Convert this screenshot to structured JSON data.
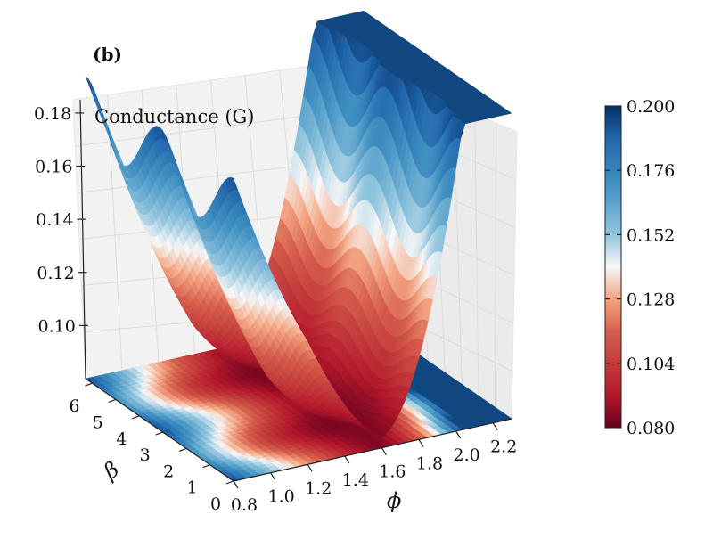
{
  "chart_data": {
    "type": "surface3d",
    "panel_label": "(b)",
    "title": "Conductance (G)",
    "xlabel": "ϕ",
    "ylabel": "β",
    "x_ticks": [
      "0.8",
      "1.0",
      "1.2",
      "1.4",
      "1.6",
      "1.8",
      "2.0",
      "2.2"
    ],
    "y_ticks": [
      "0",
      "1",
      "2",
      "3",
      "4",
      "5",
      "6"
    ],
    "z_ticks": [
      "0.10",
      "0.12",
      "0.14",
      "0.16",
      "0.18"
    ],
    "xlim": [
      0.8,
      2.3
    ],
    "ylim": [
      0,
      6.28
    ],
    "zlim": [
      0.08,
      0.185
    ],
    "colormap": "RdBu",
    "colorbar": {
      "min": 0.08,
      "max": 0.2,
      "ticks": [
        "0.080",
        "0.104",
        "0.128",
        "0.152",
        "0.176",
        "0.200"
      ]
    },
    "surface": "G(ϕ, β) minimum ≈0.085 at ϕ≈1.6, rising to ≈0.18 at ϕ≈0.8 and ≈0.19 at ϕ≈2.0; wavy modulation along β with period ≈π",
    "floor_projection": "filled contour of G on the ϕ–β plane"
  },
  "colors": {
    "low": "#67001f",
    "mid": "#f7f7f7",
    "high": "#053061"
  }
}
